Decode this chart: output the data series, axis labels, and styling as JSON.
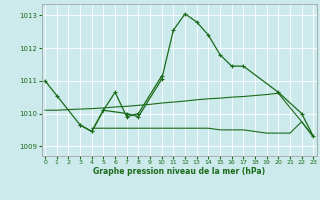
{
  "background_color": "#cce9eb",
  "grid_color": "#ffffff",
  "line_color": "#1a6b1a",
  "x_ticks": [
    0,
    1,
    2,
    3,
    4,
    5,
    6,
    7,
    8,
    9,
    10,
    11,
    12,
    13,
    14,
    15,
    16,
    17,
    18,
    19,
    20,
    21,
    22,
    23
  ],
  "y_ticks": [
    1009,
    1010,
    1011,
    1012,
    1013
  ],
  "ylim": [
    1008.7,
    1013.35
  ],
  "xlim": [
    -0.3,
    23.3
  ],
  "xlabel": "Graphe pression niveau de la mer (hPa)",
  "s0_x": [
    0,
    1,
    3,
    4,
    5,
    7,
    8,
    10,
    11,
    12,
    13,
    14,
    15,
    16,
    17,
    20,
    22,
    23
  ],
  "s0_y": [
    1011.0,
    1010.55,
    1009.65,
    1009.45,
    1010.1,
    1010.0,
    1009.9,
    1011.05,
    1012.55,
    1013.05,
    1012.8,
    1012.4,
    1011.8,
    1011.45,
    1011.45,
    1010.65,
    1010.0,
    1009.3
  ],
  "s1_x": [
    3,
    4,
    5,
    6,
    7,
    8,
    10
  ],
  "s1_y": [
    1009.65,
    1009.45,
    1010.1,
    1010.65,
    1009.9,
    1010.0,
    1011.15
  ],
  "s2_x": [
    0,
    1,
    2,
    4,
    5,
    6,
    7,
    8,
    9,
    10,
    11,
    12,
    13,
    14,
    15,
    16,
    17,
    18,
    19,
    20,
    22,
    23
  ],
  "s2_y": [
    1010.1,
    1010.1,
    1010.12,
    1010.15,
    1010.17,
    1010.2,
    1010.22,
    1010.25,
    1010.28,
    1010.32,
    1010.35,
    1010.38,
    1010.42,
    1010.45,
    1010.47,
    1010.5,
    1010.52,
    1010.55,
    1010.58,
    1010.62,
    1009.75,
    1009.3
  ],
  "s3_x": [
    4,
    5,
    6,
    7,
    8,
    9,
    10,
    11,
    12,
    13,
    14,
    15,
    16,
    17,
    18,
    19,
    21,
    22,
    23
  ],
  "s3_y": [
    1009.55,
    1009.55,
    1009.55,
    1009.55,
    1009.55,
    1009.55,
    1009.55,
    1009.55,
    1009.55,
    1009.55,
    1009.55,
    1009.5,
    1009.5,
    1009.5,
    1009.45,
    1009.4,
    1009.4,
    1009.75,
    1009.28
  ]
}
